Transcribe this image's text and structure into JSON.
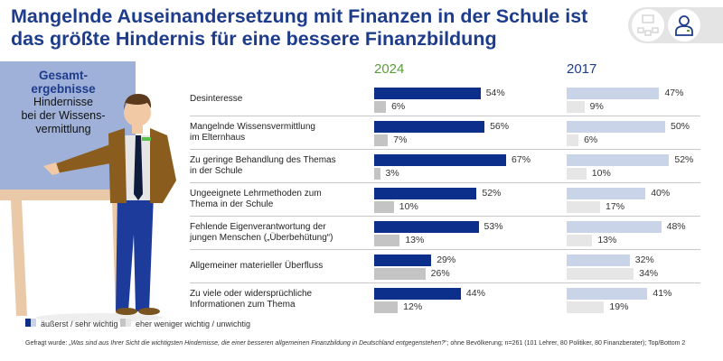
{
  "title_line1": "Mangelnde Auseinandersetzung mit Finanzen in der Schule ist",
  "title_line2": "das größte Hindernis für eine bessere Finanzbildung",
  "board": {
    "heading1": "Gesamt-",
    "heading2": "ergebnisse",
    "line1": "Hindernisse",
    "line2": "bei der Wissens-",
    "line3": "vermittlung"
  },
  "icons": [
    "hierarchy-icon",
    "person-icon"
  ],
  "legend": {
    "important": "äußerst / sehr wichtig",
    "unimportant": "eher weniger wichtig / unwichtig"
  },
  "footnote_prefix": "Gefragt wurde: „",
  "footnote_question": "Was sind aus Ihrer Sicht die wichtigsten Hindernisse, die einer besseren allgemeinen Finanzbildung in Deutschland entgegenstehen?",
  "footnote_suffix": "“; ohne Bevölkerung; n=261 (101 Lehrer, 80 Politiker,  80 Finanzberater); Top/Bottom 2",
  "colors": {
    "dark_blue": "#0b2f8a",
    "light_blue": "#c9d4e8",
    "gray": "#c4c4c4",
    "light_gray": "#e6e6e6",
    "green": "#5a9e3c",
    "title": "#1e3c8c"
  },
  "chart_data": {
    "type": "bar",
    "orientation": "horizontal",
    "unit": "%",
    "panels": [
      "2024",
      "2017"
    ],
    "categories": [
      [
        "Desinteresse"
      ],
      [
        "Mangelnde Wissensvermittlung",
        "im Elternhaus"
      ],
      [
        "Zu geringe Behandlung des Themas",
        "in der Schule"
      ],
      [
        "Ungeeignete Lehrmethoden zum",
        "Thema in der Schule"
      ],
      [
        "Fehlende Eigenverantwortung der",
        "jungen Menschen („Überbehütung“)"
      ],
      [
        "Allgemeiner materieller Überfluss"
      ],
      [
        "Zu viele oder widersprüchliche",
        "Informationen zum Thema"
      ]
    ],
    "series": [
      {
        "name": "äußerst / sehr wichtig",
        "panel": "2024",
        "values": [
          54,
          56,
          67,
          52,
          53,
          29,
          44
        ]
      },
      {
        "name": "eher weniger wichtig / unwichtig",
        "panel": "2024",
        "values": [
          6,
          7,
          3,
          10,
          13,
          26,
          12
        ]
      },
      {
        "name": "äußerst / sehr wichtig",
        "panel": "2017",
        "values": [
          47,
          50,
          52,
          40,
          48,
          32,
          41
        ]
      },
      {
        "name": "eher weniger wichtig / unwichtig",
        "panel": "2017",
        "values": [
          9,
          6,
          10,
          17,
          13,
          34,
          19
        ]
      }
    ]
  }
}
